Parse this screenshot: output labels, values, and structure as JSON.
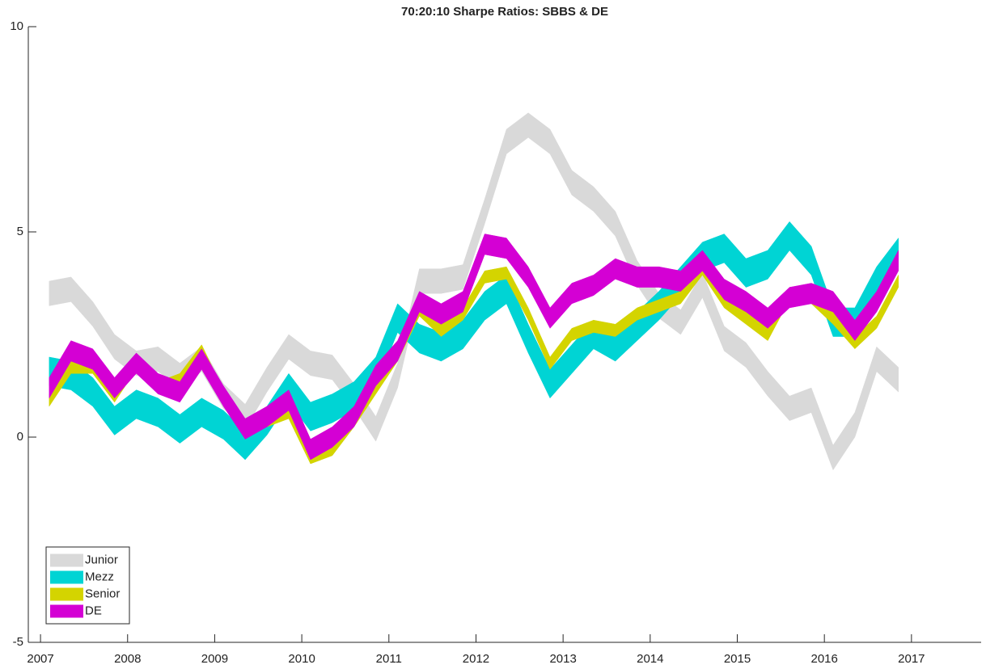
{
  "chart_data": {
    "type": "band",
    "title": "70:20:10 Sharpe Ratios: SBBS & DE",
    "x": [
      2007.1,
      2007.35,
      2007.6,
      2007.85,
      2008.1,
      2008.35,
      2008.6,
      2008.85,
      2009.1,
      2009.35,
      2009.6,
      2009.85,
      2010.1,
      2010.35,
      2010.6,
      2010.85,
      2011.1,
      2011.35,
      2011.6,
      2011.85,
      2012.1,
      2012.35,
      2012.6,
      2012.85,
      2013.1,
      2013.35,
      2013.6,
      2013.85,
      2014.1,
      2014.35,
      2014.6,
      2014.85,
      2015.1,
      2015.35,
      2015.6,
      2015.85,
      2016.1,
      2016.35,
      2016.6,
      2016.85
    ],
    "series": [
      {
        "name": "Junior",
        "color": "#d9d9d9",
        "lower": [
          3.2,
          3.3,
          2.7,
          1.9,
          1.5,
          1.6,
          1.2,
          1.6,
          0.7,
          0.2,
          1.1,
          1.9,
          1.5,
          1.4,
          0.7,
          -0.1,
          1.2,
          3.5,
          3.5,
          3.6,
          5.2,
          6.9,
          7.3,
          6.9,
          5.9,
          5.5,
          4.9,
          3.7,
          2.9,
          2.5,
          3.4,
          2.1,
          1.7,
          1.0,
          0.4,
          0.6,
          -0.8,
          0.0,
          1.6,
          1.1
        ],
        "upper": [
          3.8,
          3.9,
          3.3,
          2.5,
          2.1,
          2.2,
          1.8,
          2.2,
          1.3,
          0.8,
          1.7,
          2.5,
          2.1,
          2.0,
          1.3,
          0.5,
          1.8,
          4.1,
          4.1,
          4.2,
          5.8,
          7.5,
          7.9,
          7.5,
          6.5,
          6.1,
          5.5,
          4.3,
          3.5,
          3.1,
          4.0,
          2.7,
          2.3,
          1.6,
          1.0,
          1.2,
          -0.2,
          0.6,
          2.2,
          1.7
        ]
      },
      {
        "name": "Mezz",
        "color": "#00d4d4",
        "lower": [
          1.25,
          1.15,
          0.75,
          0.05,
          0.45,
          0.25,
          -0.15,
          0.25,
          -0.05,
          -0.55,
          0.05,
          0.85,
          0.15,
          0.35,
          0.65,
          1.25,
          2.55,
          2.05,
          1.85,
          2.15,
          2.85,
          3.25,
          2.05,
          0.95,
          1.55,
          2.15,
          1.85,
          2.35,
          2.85,
          3.45,
          4.05,
          4.25,
          3.65,
          3.85,
          4.55,
          3.95,
          2.45,
          2.45,
          3.45,
          4.15
        ],
        "upper": [
          1.95,
          1.85,
          1.45,
          0.75,
          1.15,
          0.95,
          0.55,
          0.95,
          0.65,
          0.15,
          0.75,
          1.55,
          0.85,
          1.05,
          1.35,
          1.95,
          3.25,
          2.75,
          2.55,
          2.85,
          3.55,
          3.95,
          2.75,
          1.65,
          2.25,
          2.85,
          2.55,
          3.05,
          3.55,
          4.15,
          4.75,
          4.95,
          4.35,
          4.55,
          5.25,
          4.65,
          3.15,
          3.15,
          4.15,
          4.85
        ]
      },
      {
        "name": "Senior",
        "color": "#d4d400",
        "lower": [
          0.75,
          1.55,
          1.55,
          0.85,
          1.65,
          1.05,
          1.25,
          1.95,
          0.85,
          0.15,
          0.25,
          0.45,
          -0.65,
          -0.45,
          0.25,
          1.05,
          1.85,
          2.95,
          2.45,
          2.85,
          3.75,
          3.85,
          2.85,
          1.65,
          2.35,
          2.55,
          2.45,
          2.85,
          3.05,
          3.25,
          3.95,
          3.15,
          2.75,
          2.35,
          3.35,
          3.25,
          2.75,
          2.15,
          2.65,
          3.65
        ],
        "upper": [
          1.05,
          1.85,
          1.85,
          1.15,
          1.95,
          1.35,
          1.55,
          2.25,
          1.15,
          0.45,
          0.55,
          0.75,
          -0.35,
          -0.15,
          0.55,
          1.35,
          2.15,
          3.25,
          2.75,
          3.15,
          4.05,
          4.15,
          3.15,
          1.95,
          2.65,
          2.85,
          2.75,
          3.15,
          3.35,
          3.55,
          4.25,
          3.45,
          3.05,
          2.65,
          3.65,
          3.55,
          3.05,
          2.45,
          2.95,
          3.95
        ]
      },
      {
        "name": "DE",
        "color": "#d400d4",
        "lower": [
          0.95,
          1.85,
          1.65,
          0.95,
          1.55,
          1.05,
          0.85,
          1.65,
          0.75,
          -0.05,
          0.25,
          0.65,
          -0.55,
          -0.25,
          0.25,
          1.25,
          1.85,
          3.05,
          2.75,
          3.05,
          4.45,
          4.35,
          3.65,
          2.65,
          3.25,
          3.45,
          3.85,
          3.65,
          3.65,
          3.55,
          4.05,
          3.35,
          3.05,
          2.65,
          3.15,
          3.25,
          3.05,
          2.35,
          3.05,
          4.05
        ],
        "upper": [
          1.45,
          2.35,
          2.15,
          1.45,
          2.05,
          1.55,
          1.35,
          2.15,
          1.25,
          0.45,
          0.75,
          1.15,
          -0.05,
          0.25,
          0.75,
          1.75,
          2.35,
          3.55,
          3.25,
          3.55,
          4.95,
          4.85,
          4.15,
          3.15,
          3.75,
          3.95,
          4.35,
          4.15,
          4.15,
          4.05,
          4.55,
          3.85,
          3.55,
          3.15,
          3.65,
          3.75,
          3.55,
          2.85,
          3.55,
          4.55
        ]
      }
    ],
    "xlim": [
      2006.86,
      2017.8
    ],
    "xticks": [
      2007,
      2008,
      2009,
      2010,
      2011,
      2012,
      2013,
      2014,
      2015,
      2016,
      2017
    ],
    "ylim": [
      -5,
      10
    ],
    "yticks": [
      -5,
      0,
      5,
      10
    ],
    "grid": false,
    "legend": "lower left"
  }
}
